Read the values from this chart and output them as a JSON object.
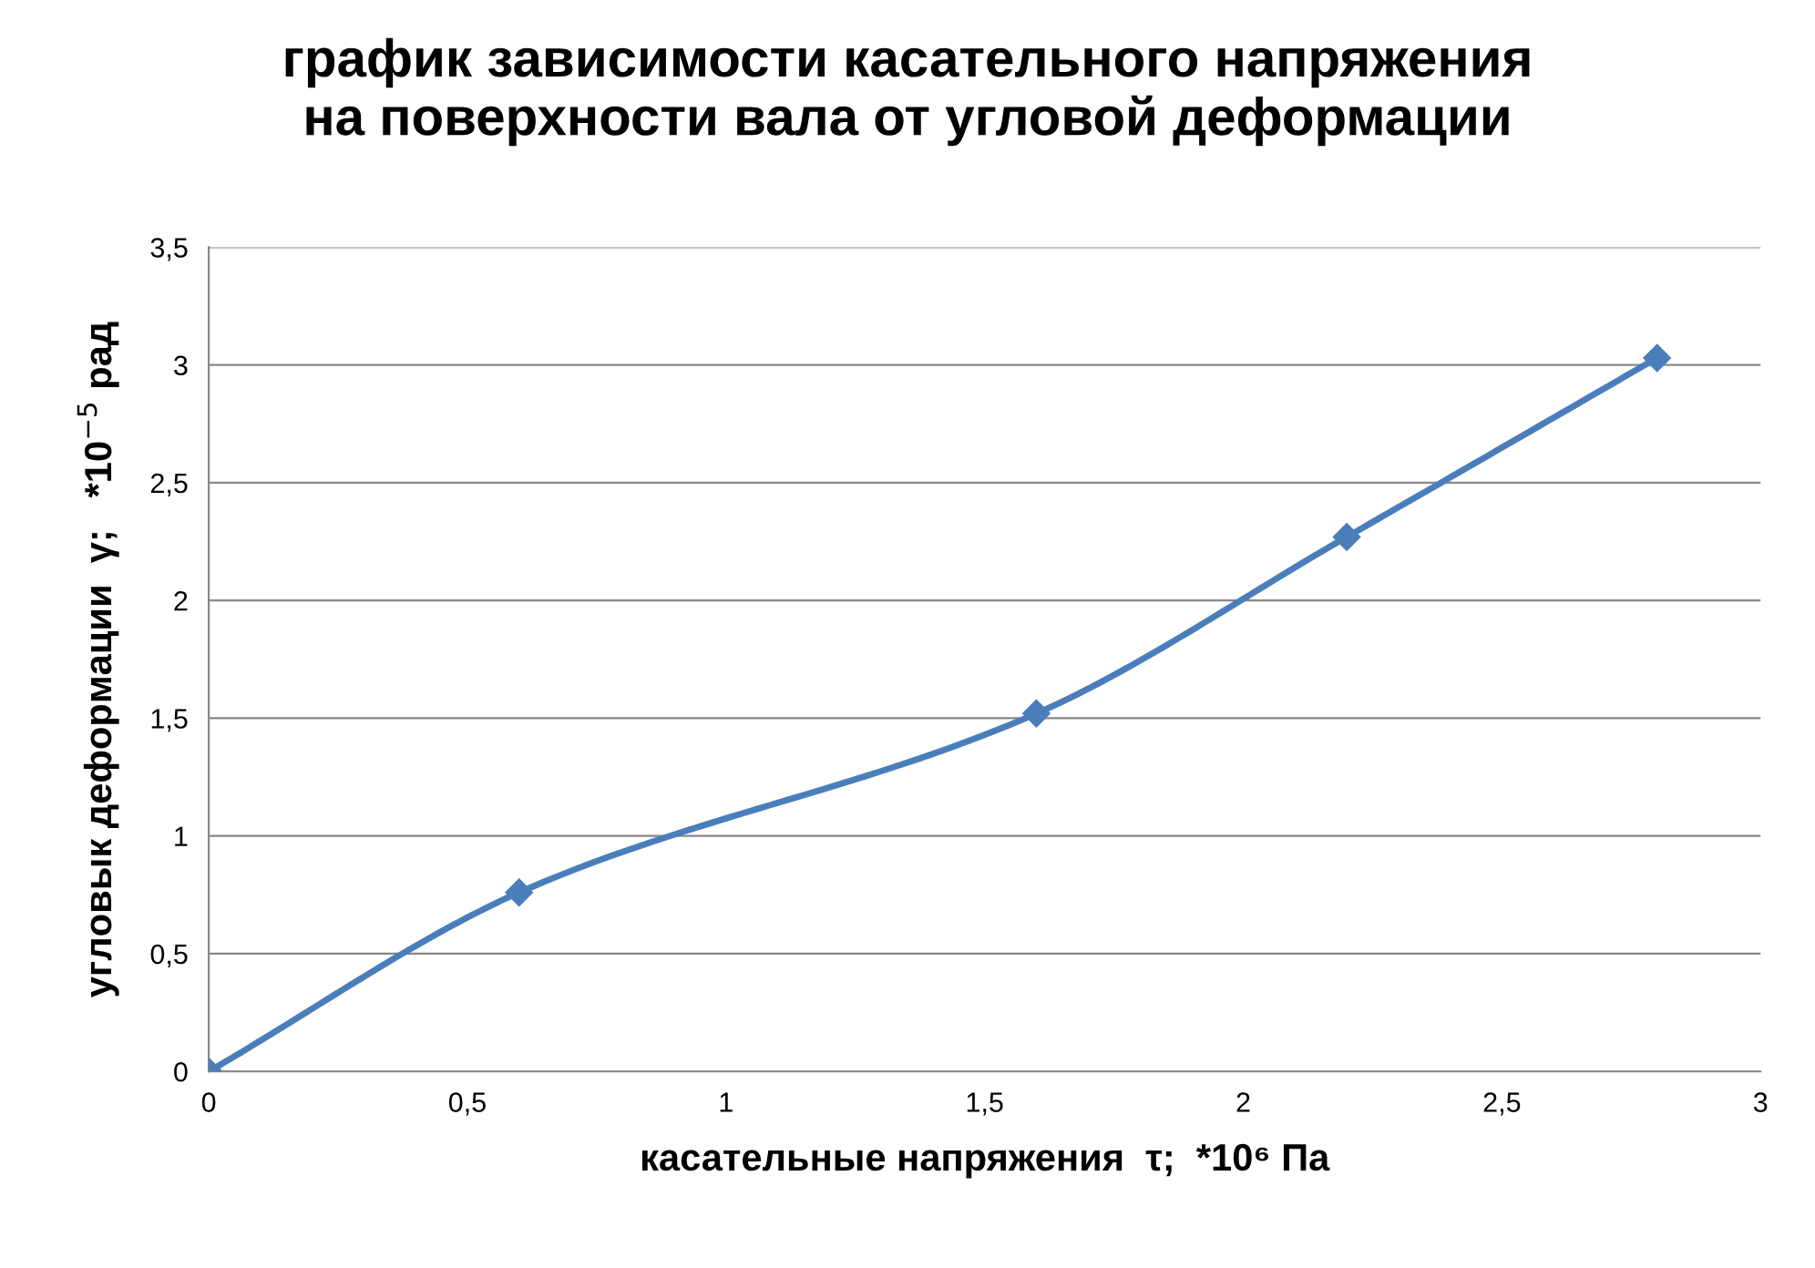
{
  "chart_data": {
    "type": "line",
    "title": "график зависимости касательного напряжения\nна поверхности вала от угловой деформации",
    "xlabel": "касательные напряжения  τ;  *10⁶ Па",
    "ylabel": "угловык деформации  γ;   *10$^{−5}$ рад",
    "x": [
      0,
      0.6,
      1.6,
      2.2,
      2.8
    ],
    "series": [
      {
        "color": "#4a7ebb",
        "values": [
          0,
          0.76,
          1.52,
          2.27,
          3.03
        ]
      }
    ],
    "xlim": [
      0,
      3
    ],
    "xticks": [
      0,
      {
        "value": 0.5,
        "label": "0,5"
      },
      1,
      {
        "value": 1.5,
        "label": "1,5"
      },
      2,
      {
        "value": 2.5,
        "label": "2,5"
      },
      3
    ],
    "ylim": [
      0,
      3.5
    ],
    "yticks": [
      0,
      {
        "value": 0.5,
        "label": "0,5"
      },
      1,
      {
        "value": 1.5,
        "label": "1,5"
      },
      2,
      {
        "value": 2.5,
        "label": "2,5"
      },
      3,
      {
        "value": 3.5,
        "label": "3,5"
      }
    ],
    "grid": "y",
    "marker": "diamond",
    "line_style": "solid",
    "legend": false
  }
}
